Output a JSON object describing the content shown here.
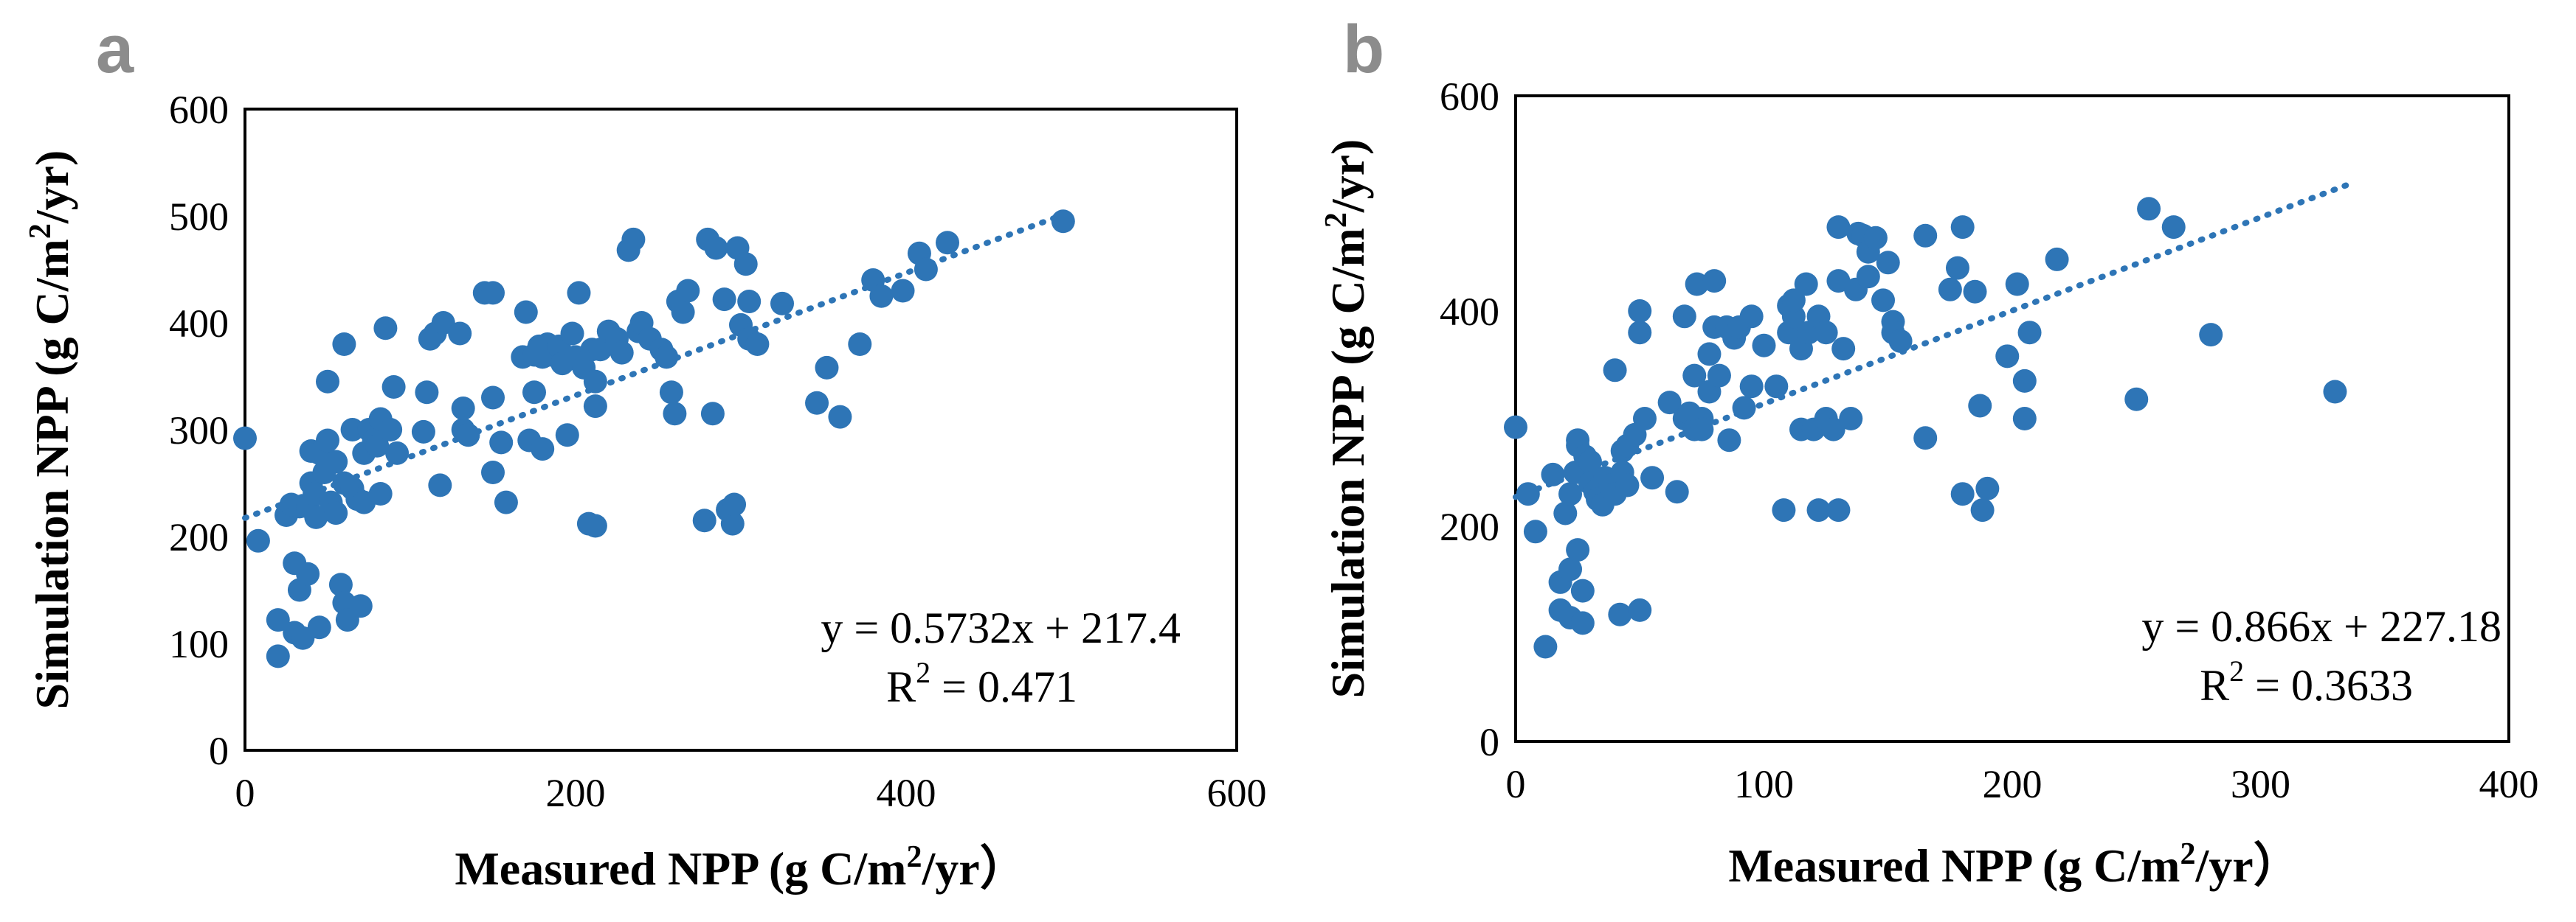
{
  "colors": {
    "marker": "#2e75b6",
    "panel_letter": "#8c8c8c"
  },
  "chart_data": [
    {
      "type": "scatter",
      "panel_label": "a",
      "xlabel_main": "Measured NPP (g C/m",
      "xlabel_sup": "2",
      "xlabel_end": "/yr）",
      "ylabel_main": "Simulation NPP (g C/m",
      "ylabel_sup": "2",
      "ylabel_end": "/yr)",
      "xlim": [
        0,
        600
      ],
      "ylim": [
        0,
        600
      ],
      "x_ticks": [
        0,
        200,
        400,
        600
      ],
      "y_ticks": [
        0,
        100,
        200,
        300,
        400,
        500,
        600
      ],
      "x_tick_labels": [
        "0",
        "200",
        "400",
        "600"
      ],
      "y_tick_labels": [
        "0",
        "100",
        "200",
        "300",
        "400",
        "500",
        "600"
      ],
      "equation": "y = 0.5732x + 217.4",
      "r2_label": "R",
      "r2_sup": "2",
      "r2_value": " = 0.471",
      "trendline": {
        "slope": 0.5732,
        "intercept": 217.4,
        "x_range": [
          0,
          500
        ]
      },
      "points": [
        [
          0,
          292
        ],
        [
          8,
          196
        ],
        [
          20,
          88
        ],
        [
          20,
          122
        ],
        [
          25,
          220
        ],
        [
          28,
          230
        ],
        [
          30,
          175
        ],
        [
          30,
          110
        ],
        [
          33,
          150
        ],
        [
          33,
          228
        ],
        [
          35,
          105
        ],
        [
          38,
          165
        ],
        [
          38,
          228
        ],
        [
          40,
          280
        ],
        [
          40,
          250
        ],
        [
          42,
          240
        ],
        [
          43,
          218
        ],
        [
          45,
          115
        ],
        [
          45,
          278
        ],
        [
          48,
          260
        ],
        [
          50,
          290
        ],
        [
          50,
          345
        ],
        [
          52,
          232
        ],
        [
          55,
          222
        ],
        [
          55,
          270
        ],
        [
          58,
          155
        ],
        [
          60,
          138
        ],
        [
          60,
          380
        ],
        [
          60,
          250
        ],
        [
          62,
          122
        ],
        [
          65,
          300
        ],
        [
          65,
          245
        ],
        [
          68,
          235
        ],
        [
          70,
          135
        ],
        [
          72,
          232
        ],
        [
          72,
          278
        ],
        [
          75,
          300
        ],
        [
          78,
          290
        ],
        [
          80,
          285
        ],
        [
          82,
          240
        ],
        [
          82,
          310
        ],
        [
          85,
          395
        ],
        [
          88,
          300
        ],
        [
          90,
          340
        ],
        [
          92,
          278
        ],
        [
          108,
          298
        ],
        [
          110,
          335
        ],
        [
          112,
          385
        ],
        [
          115,
          390
        ],
        [
          118,
          248
        ],
        [
          120,
          400
        ],
        [
          130,
          390
        ],
        [
          132,
          300
        ],
        [
          132,
          320
        ],
        [
          135,
          295
        ],
        [
          145,
          428
        ],
        [
          150,
          428
        ],
        [
          150,
          330
        ],
        [
          150,
          260
        ],
        [
          155,
          288
        ],
        [
          158,
          232
        ],
        [
          168,
          368
        ],
        [
          170,
          410
        ],
        [
          172,
          290
        ],
        [
          175,
          335
        ],
        [
          175,
          370
        ],
        [
          178,
          378
        ],
        [
          180,
          368
        ],
        [
          180,
          282
        ],
        [
          183,
          380
        ],
        [
          185,
          370
        ],
        [
          190,
          378
        ],
        [
          192,
          362
        ],
        [
          195,
          295
        ],
        [
          198,
          390
        ],
        [
          200,
          368
        ],
        [
          202,
          428
        ],
        [
          205,
          358
        ],
        [
          208,
          212
        ],
        [
          210,
          375
        ],
        [
          212,
          210
        ],
        [
          212,
          345
        ],
        [
          212,
          322
        ],
        [
          215,
          375
        ],
        [
          220,
          392
        ],
        [
          225,
          385
        ],
        [
          228,
          372
        ],
        [
          232,
          468
        ],
        [
          235,
          478
        ],
        [
          238,
          392
        ],
        [
          240,
          400
        ],
        [
          245,
          385
        ],
        [
          252,
          375
        ],
        [
          255,
          368
        ],
        [
          258,
          335
        ],
        [
          260,
          315
        ],
        [
          262,
          420
        ],
        [
          265,
          410
        ],
        [
          268,
          430
        ],
        [
          278,
          215
        ],
        [
          280,
          478
        ],
        [
          283,
          315
        ],
        [
          285,
          470
        ],
        [
          290,
          422
        ],
        [
          292,
          225
        ],
        [
          295,
          212
        ],
        [
          296,
          230
        ],
        [
          298,
          470
        ],
        [
          300,
          398
        ],
        [
          303,
          455
        ],
        [
          305,
          385
        ],
        [
          305,
          420
        ],
        [
          310,
          380
        ],
        [
          325,
          418
        ],
        [
          346,
          325
        ],
        [
          352,
          358
        ],
        [
          360,
          312
        ],
        [
          372,
          380
        ],
        [
          380,
          440
        ],
        [
          385,
          425
        ],
        [
          398,
          430
        ],
        [
          408,
          465
        ],
        [
          412,
          450
        ],
        [
          425,
          475
        ],
        [
          495,
          495
        ]
      ]
    },
    {
      "type": "scatter",
      "panel_label": "b",
      "xlabel_main": "Measured NPP (g C/m",
      "xlabel_sup": "2",
      "xlabel_end": "/yr）",
      "ylabel_main": "Simulation NPP (g C/m",
      "ylabel_sup": "2",
      "ylabel_end": "/yr)",
      "xlim": [
        0,
        400
      ],
      "ylim": [
        0,
        600
      ],
      "x_ticks": [
        0,
        100,
        200,
        300,
        400
      ],
      "y_ticks": [
        0,
        200,
        400,
        600
      ],
      "x_tick_labels": [
        "0",
        "100",
        "200",
        "300",
        "400"
      ],
      "y_tick_labels": [
        "0",
        "200",
        "400",
        "600"
      ],
      "equation": "y = 0.866x + 227.18",
      "r2_label": "R",
      "r2_sup": "2",
      "r2_value": " = 0.3633",
      "trendline": {
        "slope": 0.866,
        "intercept": 227.18,
        "x_range": [
          0,
          335
        ]
      },
      "points": [
        [
          0,
          292
        ],
        [
          5,
          230
        ],
        [
          8,
          195
        ],
        [
          12,
          88
        ],
        [
          15,
          248
        ],
        [
          18,
          148
        ],
        [
          18,
          122
        ],
        [
          20,
          212
        ],
        [
          22,
          115
        ],
        [
          22,
          160
        ],
        [
          22,
          230
        ],
        [
          24,
          250
        ],
        [
          25,
          275
        ],
        [
          25,
          178
        ],
        [
          25,
          280
        ],
        [
          27,
          140
        ],
        [
          27,
          110
        ],
        [
          28,
          265
        ],
        [
          30,
          260
        ],
        [
          30,
          240
        ],
        [
          32,
          232
        ],
        [
          33,
          225
        ],
        [
          35,
          220
        ],
        [
          36,
          245
        ],
        [
          38,
          238
        ],
        [
          40,
          230
        ],
        [
          40,
          345
        ],
        [
          42,
          118
        ],
        [
          43,
          270
        ],
        [
          43,
          250
        ],
        [
          45,
          275
        ],
        [
          45,
          238
        ],
        [
          48,
          285
        ],
        [
          50,
          380
        ],
        [
          50,
          400
        ],
        [
          50,
          122
        ],
        [
          52,
          300
        ],
        [
          55,
          245
        ],
        [
          62,
          315
        ],
        [
          65,
          232
        ],
        [
          68,
          395
        ],
        [
          68,
          300
        ],
        [
          70,
          305
        ],
        [
          72,
          340
        ],
        [
          72,
          290
        ],
        [
          73,
          425
        ],
        [
          75,
          300
        ],
        [
          75,
          290
        ],
        [
          78,
          360
        ],
        [
          78,
          325
        ],
        [
          80,
          385
        ],
        [
          80,
          428
        ],
        [
          82,
          340
        ],
        [
          85,
          385
        ],
        [
          86,
          280
        ],
        [
          88,
          375
        ],
        [
          90,
          385
        ],
        [
          92,
          310
        ],
        [
          95,
          395
        ],
        [
          95,
          330
        ],
        [
          100,
          368
        ],
        [
          105,
          330
        ],
        [
          108,
          215
        ],
        [
          110,
          405
        ],
        [
          110,
          380
        ],
        [
          112,
          395
        ],
        [
          112,
          410
        ],
        [
          115,
          365
        ],
        [
          115,
          290
        ],
        [
          117,
          425
        ],
        [
          118,
          380
        ],
        [
          120,
          290
        ],
        [
          122,
          215
        ],
        [
          122,
          395
        ],
        [
          125,
          380
        ],
        [
          125,
          300
        ],
        [
          128,
          290
        ],
        [
          130,
          215
        ],
        [
          130,
          478
        ],
        [
          130,
          428
        ],
        [
          132,
          365
        ],
        [
          135,
          300
        ],
        [
          137,
          420
        ],
        [
          138,
          472
        ],
        [
          140,
          470
        ],
        [
          142,
          455
        ],
        [
          142,
          432
        ],
        [
          145,
          468
        ],
        [
          148,
          410
        ],
        [
          150,
          445
        ],
        [
          152,
          390
        ],
        [
          152,
          380
        ],
        [
          155,
          372
        ],
        [
          165,
          470
        ],
        [
          165,
          282
        ],
        [
          175,
          420
        ],
        [
          178,
          440
        ],
        [
          180,
          478
        ],
        [
          180,
          230
        ],
        [
          185,
          418
        ],
        [
          187,
          312
        ],
        [
          188,
          215
        ],
        [
          190,
          235
        ],
        [
          198,
          358
        ],
        [
          202,
          425
        ],
        [
          205,
          335
        ],
        [
          205,
          300
        ],
        [
          207,
          380
        ],
        [
          218,
          448
        ],
        [
          250,
          318
        ],
        [
          255,
          495
        ],
        [
          265,
          478
        ],
        [
          280,
          378
        ],
        [
          330,
          325
        ]
      ]
    }
  ]
}
